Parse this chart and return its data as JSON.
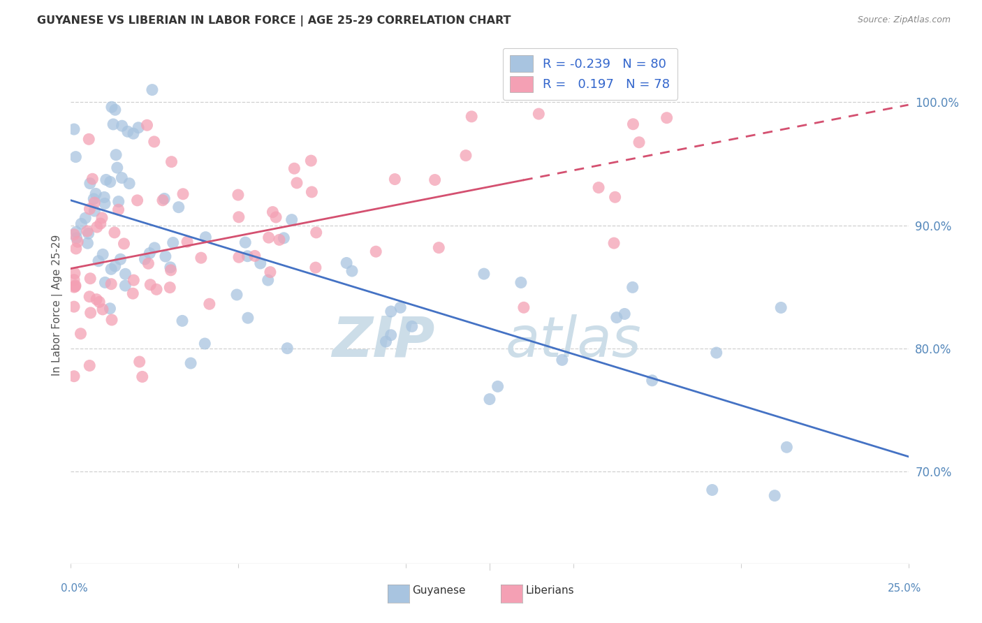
{
  "title": "GUYANESE VS LIBERIAN IN LABOR FORCE | AGE 25-29 CORRELATION CHART",
  "source": "Source: ZipAtlas.com",
  "ylabel": "In Labor Force | Age 25-29",
  "ylabel_ticks": [
    "70.0%",
    "80.0%",
    "90.0%",
    "100.0%"
  ],
  "ylabel_tick_vals": [
    0.7,
    0.8,
    0.9,
    1.0
  ],
  "xlim": [
    0.0,
    0.25
  ],
  "ylim": [
    0.625,
    1.045
  ],
  "guyanese_R": "-0.239",
  "guyanese_N": "80",
  "liberian_R": "0.197",
  "liberian_N": "78",
  "guyanese_color": "#a8c4e0",
  "liberian_color": "#f4a0b4",
  "trend_guyanese_color": "#4472c4",
  "trend_liberian_color": "#d45070",
  "background_color": "#ffffff",
  "legend_text_color": "#3366cc",
  "legend_label_color": "#222222",
  "watermark_color": "#ccdde8",
  "title_color": "#333333",
  "source_color": "#888888",
  "grid_color": "#d0d0d0",
  "axis_label_color": "#5588bb",
  "bottom_label_color": "#333333"
}
